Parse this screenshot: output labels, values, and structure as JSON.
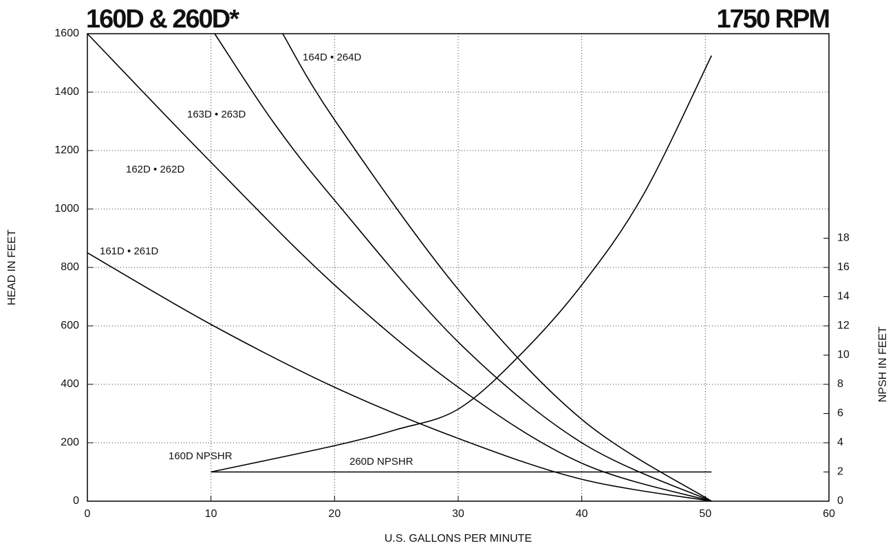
{
  "chart_data": {
    "type": "line",
    "title": "160D & 260D*",
    "subtitle": "1750 RPM",
    "x_label": "U.S. GALLONS PER MINUTE",
    "y_label": "HEAD IN FEET",
    "y2_label": "NPSH IN FEET",
    "xlim": [
      0,
      60
    ],
    "xticks": [
      0,
      10,
      20,
      30,
      40,
      50,
      60
    ],
    "ylim": [
      0,
      1600
    ],
    "yticks": [
      0,
      200,
      400,
      600,
      800,
      1000,
      1200,
      1400,
      1600
    ],
    "y2lim": [
      0,
      32
    ],
    "y2ticks": [
      0,
      2,
      4,
      6,
      8,
      10,
      12,
      14,
      16,
      18
    ],
    "grid": true,
    "color": "#000000",
    "series": [
      {
        "name": "161D • 261D",
        "x": [
          0,
          10,
          20,
          30,
          40,
          50.5
        ],
        "values": [
          850,
          605,
          390,
          215,
          75,
          0
        ]
      },
      {
        "name": "162D • 262D",
        "x": [
          0,
          10,
          20,
          30,
          40,
          50.5
        ],
        "values": [
          1600,
          1160,
          740,
          390,
          130,
          0
        ]
      },
      {
        "name": "163D • 263D",
        "x": [
          10.3,
          15,
          20,
          30,
          40,
          50.5
        ],
        "values": [
          1600,
          1300,
          1030,
          545,
          200,
          0
        ]
      },
      {
        "name": "164D • 264D",
        "x": [
          15.8,
          20,
          30,
          40,
          50.5
        ],
        "values": [
          1600,
          1305,
          725,
          280,
          0
        ]
      },
      {
        "name": "160D  NPSHR",
        "axis": "y2",
        "x": [
          10,
          20,
          25,
          30,
          35,
          40,
          45,
          50.5
        ],
        "values": [
          2,
          3.8,
          4.9,
          6.3,
          10,
          14.8,
          21,
          30.5
        ]
      },
      {
        "name": "260D  NPSHR",
        "axis": "y2",
        "x": [
          10,
          50.5
        ],
        "values": [
          2,
          2
        ]
      }
    ]
  }
}
